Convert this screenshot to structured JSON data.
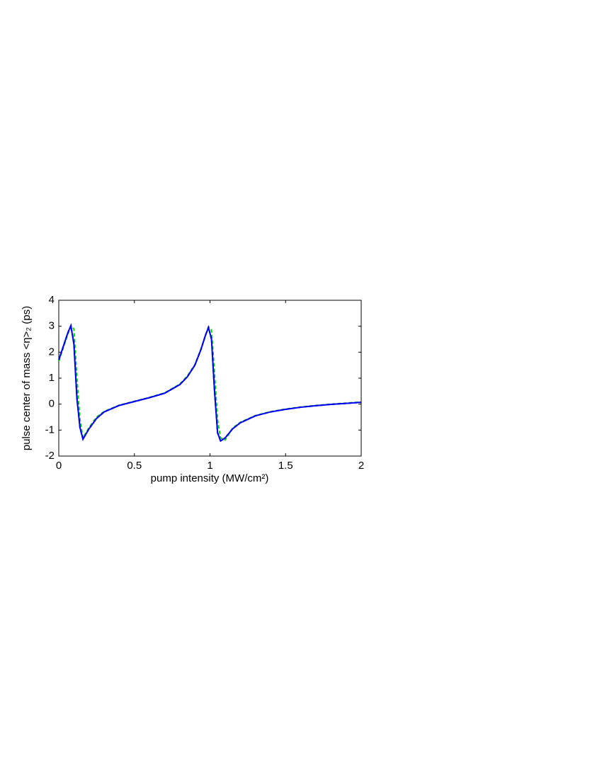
{
  "chart_data": {
    "type": "line",
    "xlabel": "pump intensity (MW/cm²)",
    "ylabel": "pulse center of mass <η>₂ (ps)",
    "x": [
      0,
      0.02,
      0.04,
      0.06,
      0.08,
      0.1,
      0.12,
      0.14,
      0.16,
      0.2,
      0.25,
      0.3,
      0.4,
      0.5,
      0.6,
      0.7,
      0.8,
      0.85,
      0.9,
      0.94,
      0.97,
      0.99,
      1.01,
      1.03,
      1.05,
      1.07,
      1.1,
      1.15,
      1.2,
      1.3,
      1.4,
      1.5,
      1.6,
      1.7,
      1.8,
      1.9,
      2.0
    ],
    "series": [
      {
        "color": "#00dd00",
        "dashed": true,
        "values": [
          1.65,
          2.0,
          2.35,
          2.7,
          3.0,
          2.9,
          1.0,
          -0.6,
          -1.3,
          -0.9,
          -0.5,
          -0.28,
          -0.04,
          0.11,
          0.26,
          0.43,
          0.77,
          1.08,
          1.52,
          2.12,
          2.65,
          2.98,
          2.85,
          1.2,
          -0.6,
          -1.3,
          -1.38,
          -0.92,
          -0.7,
          -0.44,
          -0.29,
          -0.19,
          -0.11,
          -0.05,
          0,
          0.04,
          0.08
        ]
      },
      {
        "color": "#000000",
        "dashed": true,
        "values": [
          1.7,
          2.05,
          2.4,
          2.75,
          3.02,
          2.35,
          0.25,
          -0.9,
          -1.35,
          -0.95,
          -0.55,
          -0.3,
          -0.05,
          0.1,
          0.25,
          0.42,
          0.75,
          1.05,
          1.5,
          2.1,
          2.65,
          2.95,
          2.5,
          0.5,
          -1.1,
          -1.42,
          -1.3,
          -0.95,
          -0.72,
          -0.45,
          -0.3,
          -0.2,
          -0.12,
          -0.06,
          -0.01,
          0.03,
          0.07
        ]
      },
      {
        "color": "#0000ff",
        "dashed": false,
        "values": [
          1.7,
          2.05,
          2.4,
          2.75,
          3.02,
          2.3,
          0.2,
          -0.9,
          -1.35,
          -0.95,
          -0.55,
          -0.3,
          -0.05,
          0.1,
          0.25,
          0.42,
          0.75,
          1.05,
          1.5,
          2.1,
          2.65,
          2.95,
          2.5,
          0.5,
          -1.1,
          -1.42,
          -1.3,
          -0.95,
          -0.72,
          -0.45,
          -0.3,
          -0.2,
          -0.12,
          -0.06,
          -0.01,
          0.03,
          0.07
        ]
      }
    ],
    "xlim": [
      0,
      2
    ],
    "ylim": [
      -2,
      4
    ],
    "xticks": [
      0,
      0.5,
      1,
      1.5,
      2
    ],
    "yticks": [
      -2,
      -1,
      0,
      1,
      2,
      3,
      4
    ],
    "grid": false
  }
}
